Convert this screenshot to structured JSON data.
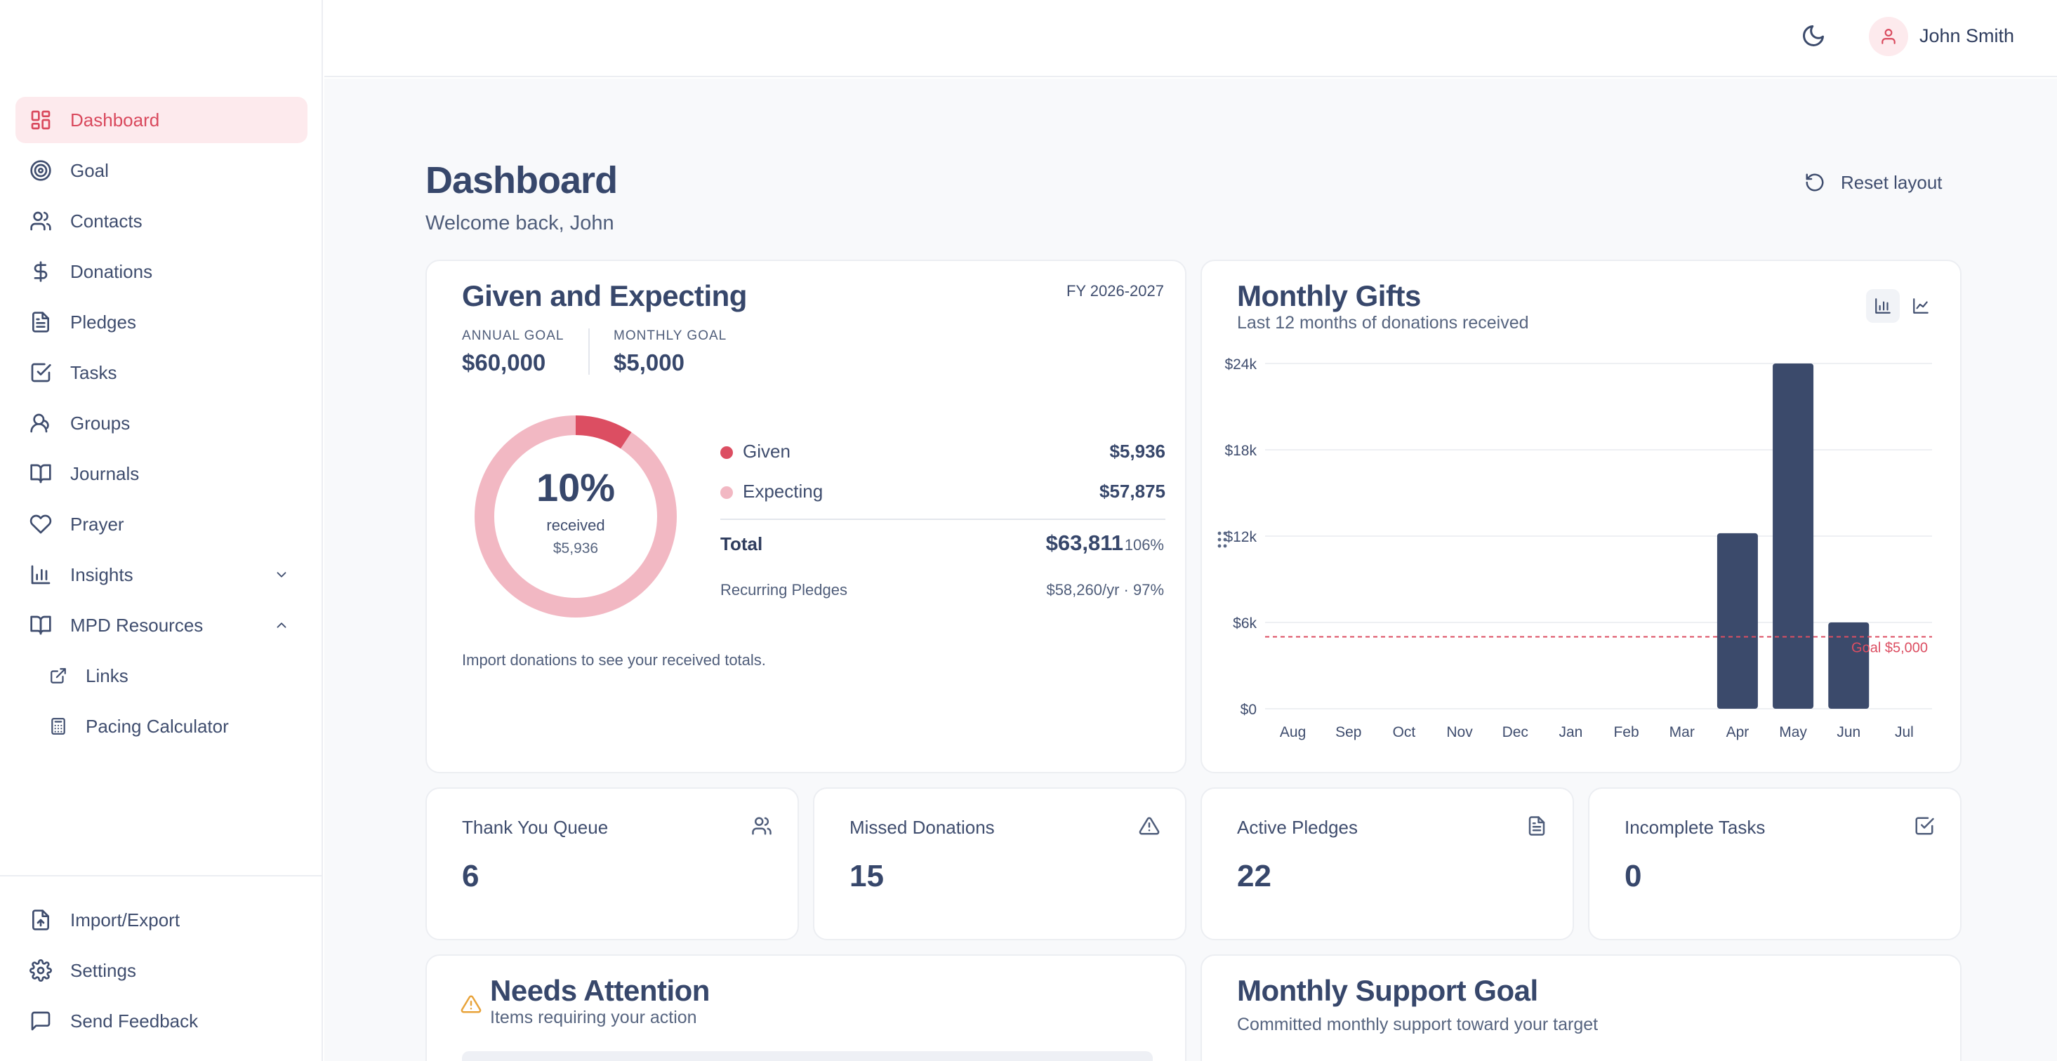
{
  "sidebar": {
    "items": [
      {
        "label": "Dashboard",
        "icon": "layout-dashboard-icon",
        "active": true
      },
      {
        "label": "Goal",
        "icon": "target-icon"
      },
      {
        "label": "Contacts",
        "icon": "users-icon"
      },
      {
        "label": "Donations",
        "icon": "dollar-sign-icon"
      },
      {
        "label": "Pledges",
        "icon": "file-text-icon"
      },
      {
        "label": "Tasks",
        "icon": "check-square-icon"
      },
      {
        "label": "Groups",
        "icon": "user-group-icon"
      },
      {
        "label": "Journals",
        "icon": "book-open-icon"
      },
      {
        "label": "Prayer",
        "icon": "heart-icon"
      },
      {
        "label": "Insights",
        "icon": "bar-chart-icon",
        "expanded": false
      },
      {
        "label": "MPD Resources",
        "icon": "book-icon",
        "expanded": true
      }
    ],
    "sub_items": [
      {
        "label": "Links",
        "icon": "external-link-icon"
      },
      {
        "label": "Pacing Calculator",
        "icon": "calculator-icon"
      }
    ],
    "footer_items": [
      {
        "label": "Import/Export",
        "icon": "file-upload-icon"
      },
      {
        "label": "Settings",
        "icon": "gear-icon"
      },
      {
        "label": "Send Feedback",
        "icon": "message-square-icon"
      }
    ]
  },
  "topbar": {
    "user_name": "John Smith",
    "theme_icon": "moon-icon",
    "avatar_icon": "user-icon"
  },
  "header": {
    "title": "Dashboard",
    "subtitle": "Welcome back, John",
    "reset_label": "Reset layout"
  },
  "given_card": {
    "title": "Given and Expecting",
    "fiscal_year": "FY 2026-2027",
    "annual_goal_label": "ANNUAL GOAL",
    "annual_goal": "$60,000",
    "monthly_goal_label": "MONTHLY GOAL",
    "monthly_goal": "$5,000",
    "percent_received": "10%",
    "received_label": "received",
    "received_amount": "$5,936",
    "given_fraction": 0.093,
    "legend": [
      {
        "name": "Given",
        "value": "$5,936",
        "color": "#dc4e62"
      },
      {
        "name": "Expecting",
        "value": "$57,875",
        "color": "#f2b8c3"
      }
    ],
    "total_label": "Total",
    "total_value": "$63,811",
    "total_percent": "106%",
    "recurring_label": "Recurring Pledges",
    "recurring_value": "$58,260/yr · 97%",
    "note": "Import donations to see your received totals."
  },
  "monthly_gifts": {
    "title": "Monthly Gifts",
    "subtitle": "Last 12 months of donations received",
    "bar_toggle_icon": "bar-chart-icon",
    "line_toggle_icon": "line-chart-icon"
  },
  "chart_data": {
    "type": "bar",
    "categories": [
      "Aug",
      "Sep",
      "Oct",
      "Nov",
      "Dec",
      "Jan",
      "Feb",
      "Mar",
      "Apr",
      "May",
      "Jun",
      "Jul"
    ],
    "values": [
      0,
      0,
      0,
      0,
      0,
      0,
      0,
      0,
      12200,
      24000,
      6000,
      0
    ],
    "y_ticks": [
      "$0",
      "$6k",
      "$12k",
      "$18k",
      "$24k"
    ],
    "ylim": [
      0,
      24000
    ],
    "goal_value": 5000,
    "goal_label": "Goal $5,000",
    "bar_color": "#3b4a6b",
    "goal_color": "#dc4e62",
    "grid": true
  },
  "stats": [
    {
      "label": "Thank You Queue",
      "value": "6",
      "icon": "users-icon"
    },
    {
      "label": "Missed Donations",
      "value": "15",
      "icon": "alert-triangle-icon"
    },
    {
      "label": "Active Pledges",
      "value": "22",
      "icon": "file-text-icon"
    },
    {
      "label": "Incomplete Tasks",
      "value": "0",
      "icon": "check-square-icon"
    }
  ],
  "attention": {
    "title": "Needs Attention",
    "subtitle": "Items requiring your action",
    "icon": "alert-triangle-icon",
    "icon_color": "#e8a33a"
  },
  "support_goal": {
    "title": "Monthly Support Goal",
    "subtitle": "Committed monthly support toward your target"
  }
}
